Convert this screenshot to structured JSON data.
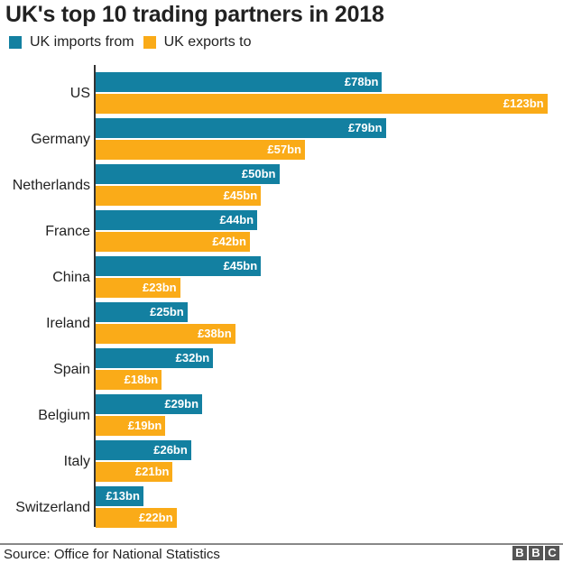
{
  "title": "UK's top 10 trading partners in 2018",
  "legend": [
    {
      "label": "UK imports from",
      "color": "#1380A1"
    },
    {
      "label": "UK exports to",
      "color": "#FAAB18"
    }
  ],
  "source": "Source: Office for National Statistics",
  "logo": [
    "B",
    "B",
    "C"
  ],
  "rows": [
    {
      "country": "US",
      "imports": 78,
      "exports": 123,
      "imports_label": "£78bn",
      "exports_label": "£123bn"
    },
    {
      "country": "Germany",
      "imports": 79,
      "exports": 57,
      "imports_label": "£79bn",
      "exports_label": "£57bn"
    },
    {
      "country": "Netherlands",
      "imports": 50,
      "exports": 45,
      "imports_label": "£50bn",
      "exports_label": "£45bn"
    },
    {
      "country": "France",
      "imports": 44,
      "exports": 42,
      "imports_label": "£44bn",
      "exports_label": "£42bn"
    },
    {
      "country": "China",
      "imports": 45,
      "exports": 23,
      "imports_label": "£45bn",
      "exports_label": "£23bn"
    },
    {
      "country": "Ireland",
      "imports": 25,
      "exports": 38,
      "imports_label": "£25bn",
      "exports_label": "£38bn"
    },
    {
      "country": "Spain",
      "imports": 32,
      "exports": 18,
      "imports_label": "£32bn",
      "exports_label": "£18bn"
    },
    {
      "country": "Belgium",
      "imports": 29,
      "exports": 19,
      "imports_label": "£29bn",
      "exports_label": "£19bn"
    },
    {
      "country": "Italy",
      "imports": 26,
      "exports": 21,
      "imports_label": "£26bn",
      "exports_label": "£21bn"
    },
    {
      "country": "Switzerland",
      "imports": 13,
      "exports": 22,
      "imports_label": "£13bn",
      "exports_label": "£22bn"
    }
  ],
  "chart_data": {
    "type": "bar",
    "orientation": "horizontal",
    "title": "UK's top 10 trading partners in 2018",
    "categories": [
      "US",
      "Germany",
      "Netherlands",
      "France",
      "China",
      "Ireland",
      "Spain",
      "Belgium",
      "Italy",
      "Switzerland"
    ],
    "series": [
      {
        "name": "UK imports from",
        "color": "#1380A1",
        "values": [
          78,
          79,
          50,
          44,
          45,
          25,
          32,
          29,
          26,
          13
        ]
      },
      {
        "name": "UK exports to",
        "color": "#FAAB18",
        "values": [
          123,
          57,
          45,
          42,
          23,
          38,
          18,
          19,
          21,
          22
        ]
      }
    ],
    "unit": "£bn",
    "xlabel": "",
    "ylabel": "",
    "legend_position": "top-left",
    "grid": false,
    "source": "Source: Office for National Statistics"
  }
}
